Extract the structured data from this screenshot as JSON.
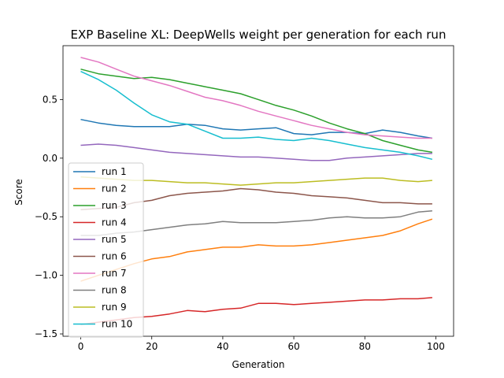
{
  "chart_data": {
    "type": "line",
    "title": "EXP Baseline XL: DeepWells weight per generation for each run",
    "xlabel": "Generation",
    "ylabel": "Score",
    "xlim": [
      -5,
      105
    ],
    "ylim": [
      -1.52,
      0.96
    ],
    "xticks": [
      0,
      20,
      40,
      60,
      80,
      100
    ],
    "yticks": [
      -1.5,
      -1.0,
      -0.5,
      0.0,
      0.5
    ],
    "ytick_labels": [
      "−1.5",
      "−1.0",
      "−0.5",
      "0.0",
      "0.5"
    ],
    "grid": false,
    "legend_position": "lower-left",
    "series": [
      {
        "name": "run 1",
        "color": "#1f77b4",
        "x": [
          0,
          5,
          10,
          15,
          20,
          25,
          30,
          35,
          40,
          45,
          50,
          55,
          60,
          65,
          70,
          75,
          80,
          85,
          90,
          95,
          99
        ],
        "y": [
          0.33,
          0.3,
          0.28,
          0.27,
          0.27,
          0.27,
          0.29,
          0.28,
          0.25,
          0.24,
          0.25,
          0.26,
          0.21,
          0.2,
          0.22,
          0.22,
          0.21,
          0.24,
          0.22,
          0.19,
          0.17
        ]
      },
      {
        "name": "run 2",
        "color": "#ff7f0e",
        "x": [
          0,
          5,
          10,
          15,
          20,
          25,
          30,
          35,
          40,
          45,
          50,
          55,
          60,
          65,
          70,
          75,
          80,
          85,
          90,
          95,
          99
        ],
        "y": [
          -1.05,
          -1.0,
          -0.95,
          -0.9,
          -0.86,
          -0.84,
          -0.8,
          -0.78,
          -0.76,
          -0.76,
          -0.74,
          -0.75,
          -0.75,
          -0.74,
          -0.72,
          -0.7,
          -0.68,
          -0.66,
          -0.62,
          -0.56,
          -0.52
        ]
      },
      {
        "name": "run 3",
        "color": "#2ca02c",
        "x": [
          0,
          5,
          10,
          15,
          20,
          25,
          30,
          35,
          40,
          45,
          50,
          55,
          60,
          65,
          70,
          75,
          80,
          85,
          90,
          95,
          99
        ],
        "y": [
          0.76,
          0.72,
          0.7,
          0.68,
          0.69,
          0.67,
          0.64,
          0.61,
          0.58,
          0.55,
          0.5,
          0.45,
          0.41,
          0.36,
          0.3,
          0.25,
          0.21,
          0.15,
          0.11,
          0.07,
          0.05
        ]
      },
      {
        "name": "run 4",
        "color": "#d62728",
        "x": [
          0,
          5,
          10,
          15,
          20,
          25,
          30,
          35,
          40,
          45,
          50,
          55,
          60,
          65,
          70,
          75,
          80,
          85,
          90,
          95,
          99
        ],
        "y": [
          -1.42,
          -1.4,
          -1.38,
          -1.36,
          -1.35,
          -1.33,
          -1.3,
          -1.31,
          -1.29,
          -1.28,
          -1.24,
          -1.24,
          -1.25,
          -1.24,
          -1.23,
          -1.22,
          -1.21,
          -1.21,
          -1.2,
          -1.2,
          -1.19
        ]
      },
      {
        "name": "run 5",
        "color": "#9467bd",
        "x": [
          0,
          5,
          10,
          15,
          20,
          25,
          30,
          35,
          40,
          45,
          50,
          55,
          60,
          65,
          70,
          75,
          80,
          85,
          90,
          95,
          99
        ],
        "y": [
          0.11,
          0.12,
          0.11,
          0.09,
          0.07,
          0.05,
          0.04,
          0.03,
          0.02,
          0.01,
          0.01,
          0.0,
          -0.01,
          -0.02,
          -0.02,
          0.0,
          0.01,
          0.02,
          0.03,
          0.04,
          0.04
        ]
      },
      {
        "name": "run 6",
        "color": "#8c564b",
        "x": [
          0,
          5,
          10,
          15,
          20,
          25,
          30,
          35,
          40,
          45,
          50,
          55,
          60,
          65,
          70,
          75,
          80,
          85,
          90,
          95,
          99
        ],
        "y": [
          -0.44,
          -0.43,
          -0.42,
          -0.38,
          -0.36,
          -0.32,
          -0.3,
          -0.29,
          -0.28,
          -0.26,
          -0.27,
          -0.29,
          -0.3,
          -0.32,
          -0.33,
          -0.34,
          -0.36,
          -0.38,
          -0.38,
          -0.39,
          -0.39
        ]
      },
      {
        "name": "run 7",
        "color": "#e377c2",
        "x": [
          0,
          5,
          10,
          15,
          20,
          25,
          30,
          35,
          40,
          45,
          50,
          55,
          60,
          65,
          70,
          75,
          80,
          85,
          90,
          95,
          99
        ],
        "y": [
          0.86,
          0.82,
          0.76,
          0.7,
          0.66,
          0.62,
          0.57,
          0.52,
          0.49,
          0.45,
          0.4,
          0.36,
          0.32,
          0.28,
          0.25,
          0.22,
          0.2,
          0.19,
          0.18,
          0.17,
          0.17
        ]
      },
      {
        "name": "run 8",
        "color": "#7f7f7f",
        "x": [
          0,
          5,
          10,
          15,
          20,
          25,
          30,
          35,
          40,
          45,
          50,
          55,
          60,
          65,
          70,
          75,
          80,
          85,
          90,
          95,
          99
        ],
        "y": [
          -0.66,
          -0.66,
          -0.64,
          -0.63,
          -0.61,
          -0.59,
          -0.57,
          -0.56,
          -0.54,
          -0.55,
          -0.55,
          -0.55,
          -0.54,
          -0.53,
          -0.51,
          -0.5,
          -0.51,
          -0.51,
          -0.5,
          -0.46,
          -0.45
        ]
      },
      {
        "name": "run 9",
        "color": "#bcbd22",
        "x": [
          0,
          5,
          10,
          15,
          20,
          25,
          30,
          35,
          40,
          45,
          50,
          55,
          60,
          65,
          70,
          75,
          80,
          85,
          90,
          95,
          99
        ],
        "y": [
          -0.16,
          -0.17,
          -0.18,
          -0.19,
          -0.19,
          -0.2,
          -0.21,
          -0.21,
          -0.22,
          -0.23,
          -0.22,
          -0.21,
          -0.21,
          -0.2,
          -0.19,
          -0.18,
          -0.17,
          -0.17,
          -0.19,
          -0.2,
          -0.19
        ]
      },
      {
        "name": "run 10",
        "color": "#17becf",
        "x": [
          0,
          5,
          10,
          15,
          20,
          25,
          30,
          35,
          40,
          45,
          50,
          55,
          60,
          65,
          70,
          75,
          80,
          85,
          90,
          95,
          99
        ],
        "y": [
          0.74,
          0.67,
          0.58,
          0.47,
          0.37,
          0.31,
          0.29,
          0.23,
          0.17,
          0.17,
          0.18,
          0.16,
          0.15,
          0.17,
          0.15,
          0.12,
          0.09,
          0.07,
          0.05,
          0.02,
          -0.01
        ]
      }
    ]
  }
}
